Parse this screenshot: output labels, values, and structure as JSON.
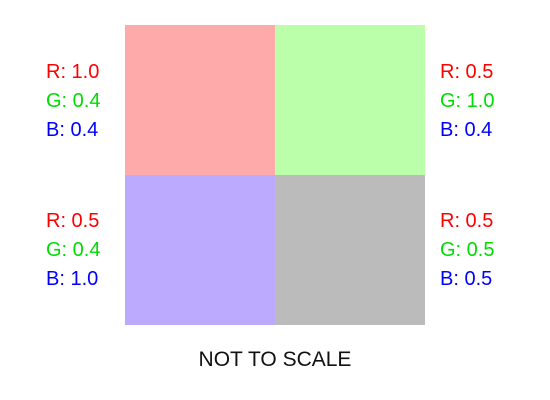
{
  "colors": {
    "r_text": "#ff0000",
    "g_text": "#00dd00",
    "b_text": "#0000ff"
  },
  "swatches": [
    {
      "id": "top-left",
      "fill": "#ffaaaa",
      "rgb": {
        "r": 1.0,
        "g": 0.4,
        "b": 0.4
      },
      "labels": {
        "r": "R: 1.0",
        "g": "G: 0.4",
        "b": "B: 0.4"
      }
    },
    {
      "id": "top-right",
      "fill": "#bbffaa",
      "rgb": {
        "r": 0.5,
        "g": 1.0,
        "b": 0.4
      },
      "labels": {
        "r": "R: 0.5",
        "g": "G: 1.0",
        "b": "B: 0.4"
      }
    },
    {
      "id": "bottom-left",
      "fill": "#bbaaff",
      "rgb": {
        "r": 0.5,
        "g": 0.4,
        "b": 1.0
      },
      "labels": {
        "r": "R: 0.5",
        "g": "G: 0.4",
        "b": "B: 1.0"
      }
    },
    {
      "id": "bottom-right",
      "fill": "#bbbbbb",
      "rgb": {
        "r": 0.5,
        "g": 0.5,
        "b": 0.5
      },
      "labels": {
        "r": "R: 0.5",
        "g": "G: 0.5",
        "b": "B: 0.5"
      }
    }
  ],
  "footnote": "NOT TO SCALE"
}
